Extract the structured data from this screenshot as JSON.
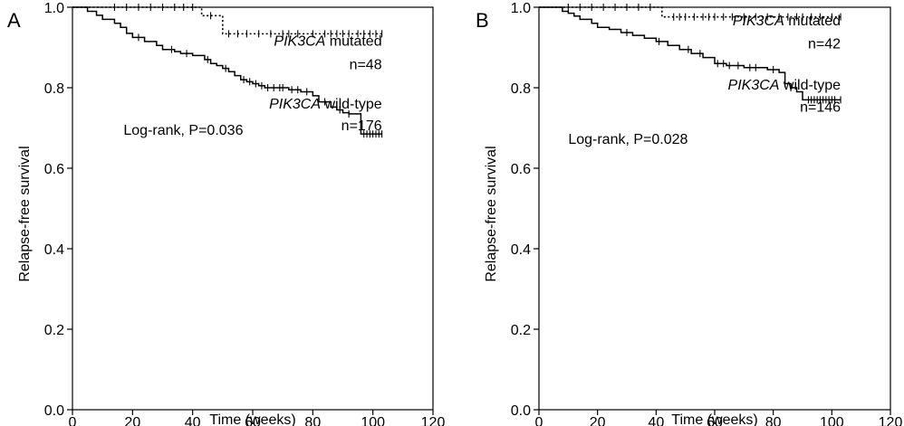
{
  "chart_data": [
    {
      "type": "line",
      "panel_label": "A",
      "xlabel": "Time (weeks)",
      "ylabel": "Relapse-free survival",
      "xlim": [
        0,
        120
      ],
      "ylim": [
        0.0,
        1.0
      ],
      "xticks": [
        "0",
        "20",
        "40",
        "60",
        "80",
        "100",
        "120"
      ],
      "yticks": [
        "0.0",
        "0.2",
        "0.4",
        "0.6",
        "0.8",
        "1.0"
      ],
      "grid": false,
      "annotation": "Log-rank, P=0.036",
      "series": [
        {
          "name": "PIK3CA mutated",
          "name_italic": "PIK3CA",
          "name_rest": " mutated",
          "n_label": "n=48",
          "style": "dotted",
          "x": [
            0,
            43,
            50,
            103
          ],
          "y": [
            1.0,
            0.979,
            0.934,
            0.934
          ],
          "censor_x": [
            14,
            18,
            22,
            26,
            30,
            34,
            37,
            40,
            46,
            52,
            55,
            58,
            62,
            66,
            70,
            72,
            75,
            80,
            84,
            86,
            88,
            90,
            92,
            95,
            97,
            99,
            101,
            103
          ]
        },
        {
          "name": "PIK3CA wild-type",
          "name_italic": "PIK3CA",
          "name_rest": " wild-type",
          "n_label": "n=176",
          "style": "solid",
          "x": [
            0,
            5,
            8,
            10,
            14,
            16,
            18,
            20,
            24,
            28,
            30,
            34,
            36,
            40,
            44,
            46,
            48,
            50,
            52,
            54,
            56,
            58,
            60,
            62,
            64,
            72,
            76,
            80,
            82,
            86,
            88,
            90,
            92,
            96,
            103
          ],
          "y": [
            1.0,
            0.99,
            0.98,
            0.97,
            0.96,
            0.95,
            0.935,
            0.925,
            0.915,
            0.905,
            0.895,
            0.89,
            0.885,
            0.88,
            0.87,
            0.86,
            0.855,
            0.848,
            0.84,
            0.83,
            0.82,
            0.815,
            0.81,
            0.805,
            0.8,
            0.795,
            0.79,
            0.78,
            0.765,
            0.752,
            0.745,
            0.738,
            0.735,
            0.685,
            0.685
          ],
          "censor_x": [
            22,
            33,
            38,
            45,
            51,
            57,
            59,
            61,
            63,
            65,
            67,
            69,
            70,
            73,
            75,
            78,
            84,
            89,
            92,
            97,
            98,
            99,
            100,
            101,
            102,
            103
          ]
        }
      ]
    },
    {
      "type": "line",
      "panel_label": "B",
      "xlabel": "Time (weeks)",
      "ylabel": "Relapse-free survival",
      "xlim": [
        0,
        120
      ],
      "ylim": [
        0.0,
        1.0
      ],
      "xticks": [
        "0",
        "20",
        "40",
        "60",
        "80",
        "100",
        "120"
      ],
      "yticks": [
        "0.0",
        "0.2",
        "0.4",
        "0.6",
        "0.8",
        "1.0"
      ],
      "grid": false,
      "annotation": "Log-rank, P=0.028",
      "series": [
        {
          "name": "PIK3CA mutated",
          "name_italic": "PIK3CA",
          "name_rest": " mutated",
          "n_label": "n=42",
          "style": "dotted",
          "x": [
            0,
            42,
            103
          ],
          "y": [
            1.0,
            0.976,
            0.976
          ],
          "censor_x": [
            10,
            14,
            18,
            22,
            26,
            30,
            34,
            38,
            46,
            48,
            50,
            53,
            56,
            58,
            60,
            63,
            66,
            70,
            74,
            78,
            82,
            85,
            88,
            90,
            93,
            96,
            100,
            103
          ]
        },
        {
          "name": "PIK3CA wild-type",
          "name_italic": "PIK3CA",
          "name_rest": " wild-type",
          "n_label": "n=146",
          "style": "solid",
          "x": [
            0,
            8,
            10,
            12,
            14,
            18,
            20,
            24,
            28,
            32,
            36,
            40,
            44,
            48,
            52,
            56,
            60,
            64,
            70,
            78,
            82,
            84,
            86,
            88,
            90,
            103
          ],
          "y": [
            1.0,
            0.99,
            0.985,
            0.978,
            0.97,
            0.96,
            0.95,
            0.945,
            0.937,
            0.93,
            0.923,
            0.915,
            0.905,
            0.895,
            0.885,
            0.875,
            0.86,
            0.855,
            0.85,
            0.845,
            0.838,
            0.81,
            0.8,
            0.79,
            0.77,
            0.77
          ],
          "censor_x": [
            30,
            41,
            51,
            55,
            61,
            63,
            65,
            68,
            72,
            74,
            80,
            84,
            86,
            92,
            93,
            94,
            95,
            96,
            97,
            98,
            99,
            100,
            101,
            103
          ]
        }
      ]
    }
  ]
}
